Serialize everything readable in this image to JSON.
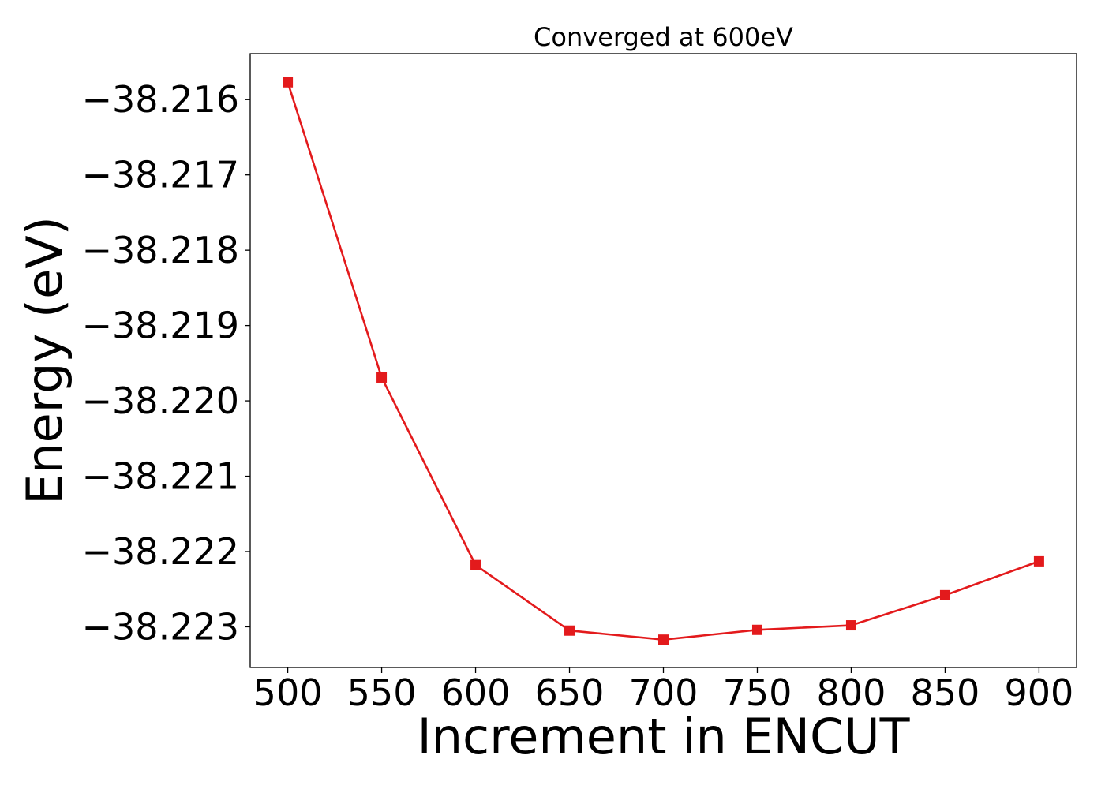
{
  "chart_data": {
    "type": "line",
    "title": "Converged at 600eV",
    "xlabel": "Increment in ENCUT",
    "ylabel": "Energy (eV)",
    "x": [
      500,
      550,
      600,
      650,
      700,
      750,
      800,
      850,
      900
    ],
    "series": [
      {
        "values": [
          -38.21577,
          -38.21969,
          -38.22218,
          -38.22305,
          -38.22317,
          -38.22304,
          -38.22298,
          -38.22258,
          -38.22213
        ],
        "color": "#e31a1c",
        "marker": "square"
      }
    ],
    "xticks": [
      500,
      550,
      600,
      650,
      700,
      750,
      800,
      850,
      900
    ],
    "xtick_labels": [
      "500",
      "550",
      "600",
      "650",
      "700",
      "750",
      "800",
      "850",
      "900"
    ],
    "yticks": [
      -38.216,
      -38.217,
      -38.218,
      -38.219,
      -38.22,
      -38.221,
      -38.222,
      -38.223
    ],
    "ytick_labels": [
      "−38.216",
      "−38.217",
      "−38.218",
      "−38.219",
      "−38.220",
      "−38.221",
      "−38.222",
      "−38.223"
    ],
    "xlim": [
      480,
      920
    ],
    "ylim": [
      -38.22354,
      -38.21539
    ],
    "grid": false,
    "legend": "none"
  }
}
